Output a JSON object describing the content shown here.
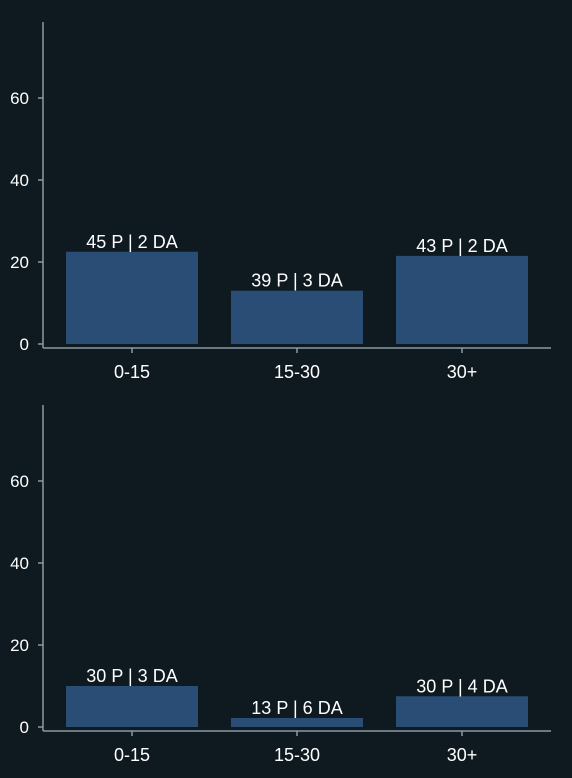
{
  "colors": {
    "background": "#0f1920",
    "bar": "#2a4d75",
    "axis": "#8a9aa3",
    "text": "#ffffff"
  },
  "chart_data": [
    {
      "type": "bar",
      "categories": [
        "0-15",
        "15-30",
        "30+"
      ],
      "values": [
        22.5,
        13,
        21.5
      ],
      "data_labels": [
        "45 P | 2 DA",
        "39 P | 3 DA",
        "43 P | 2 DA"
      ],
      "title": "",
      "xlabel": "",
      "ylabel": "",
      "ylim": [
        0,
        78
      ],
      "yticks": [
        0,
        20,
        40,
        60
      ],
      "grid": false
    },
    {
      "type": "bar",
      "categories": [
        "0-15",
        "15-30",
        "30+"
      ],
      "values": [
        10,
        2.2,
        7.5
      ],
      "data_labels": [
        "30 P | 3 DA",
        "13 P | 6 DA",
        "30 P | 4 DA"
      ],
      "title": "",
      "xlabel": "",
      "ylabel": "",
      "ylim": [
        0,
        78
      ],
      "yticks": [
        0,
        20,
        40,
        60
      ],
      "grid": false
    }
  ]
}
